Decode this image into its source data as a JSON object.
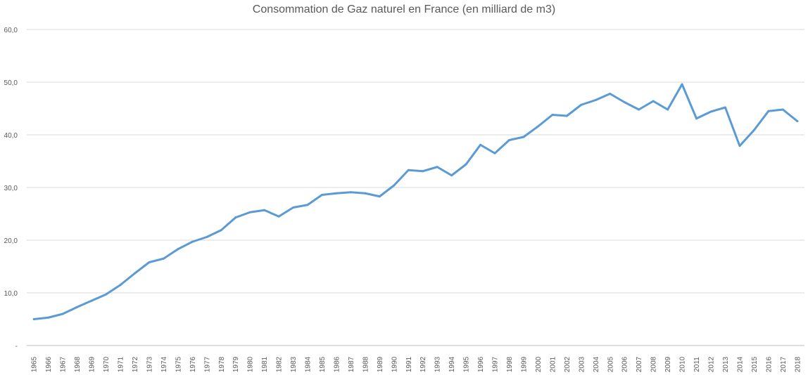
{
  "chart_data": {
    "type": "line",
    "title": "Consommation de Gaz naturel en France (en milliard de m3)",
    "xlabel": "",
    "ylabel": "",
    "ylim": [
      0,
      60
    ],
    "y_ticks": [
      0,
      10,
      20,
      30,
      40,
      50,
      60
    ],
    "y_tick_labels": [
      "-",
      "10,0",
      "20,0",
      "30,0",
      "40,0",
      "50,0",
      "60,0"
    ],
    "grid": true,
    "legend": "none",
    "categories": [
      "1965",
      "1966",
      "1967",
      "1968",
      "1969",
      "1970",
      "1971",
      "1972",
      "1973",
      "1974",
      "1975",
      "1976",
      "1977",
      "1978",
      "1979",
      "1980",
      "1981",
      "1982",
      "1983",
      "1984",
      "1985",
      "1986",
      "1987",
      "1988",
      "1989",
      "1990",
      "1991",
      "1992",
      "1993",
      "1994",
      "1995",
      "1996",
      "1997",
      "1998",
      "1999",
      "2000",
      "2001",
      "2002",
      "2003",
      "2004",
      "2005",
      "2006",
      "2007",
      "2008",
      "2009",
      "2010",
      "2011",
      "2012",
      "2013",
      "2014",
      "2015",
      "2016",
      "2017",
      "2018"
    ],
    "series": [
      {
        "color": "#5b9bd5",
        "values": [
          5.0,
          5.3,
          6.0,
          7.3,
          8.5,
          9.7,
          11.5,
          13.7,
          15.8,
          16.5,
          18.3,
          19.7,
          20.6,
          21.9,
          24.3,
          25.3,
          25.7,
          24.5,
          26.2,
          26.7,
          28.6,
          28.9,
          29.1,
          28.9,
          28.3,
          30.4,
          33.3,
          33.1,
          33.9,
          32.3,
          34.4,
          38.1,
          36.5,
          39.0,
          39.6,
          41.6,
          43.8,
          43.6,
          45.7,
          46.6,
          47.8,
          46.2,
          44.8,
          46.4,
          44.8,
          49.6,
          43.1,
          44.4,
          45.2,
          37.9,
          40.9,
          44.5,
          44.8,
          42.6
        ]
      }
    ]
  }
}
